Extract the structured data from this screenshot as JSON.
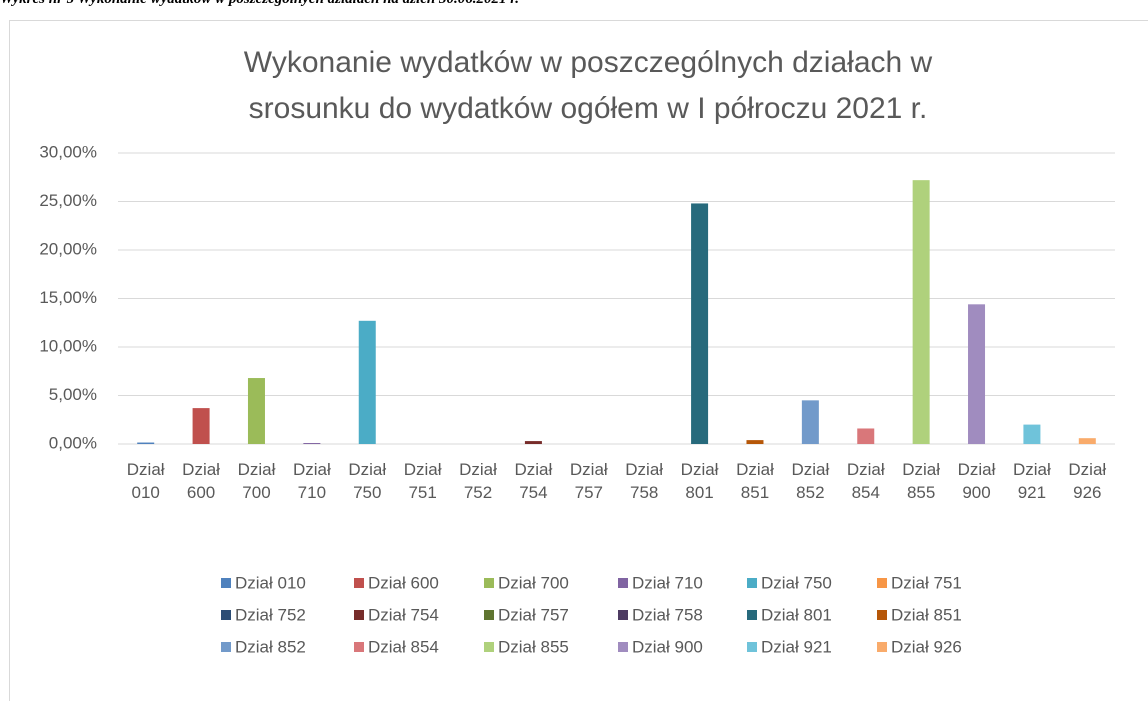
{
  "heading": "Wykres nr 5 Wykonanie wydatków w poszczególnych działach na dzień 30.06.2021 r.",
  "chart_data": {
    "type": "bar",
    "title": "Wykonanie wydatków w poszczególnych działach w srosunku do wydatków ogółem w I półroczu 2021 r.",
    "categories": [
      "Dział 010",
      "Dział 600",
      "Dział 700",
      "Dział 710",
      "Dział 750",
      "Dział 751",
      "Dział 752",
      "Dział 754",
      "Dział 757",
      "Dział 758",
      "Dział 801",
      "Dział 851",
      "Dział 852",
      "Dział 854",
      "Dział 855",
      "Dział 900",
      "Dział 921",
      "Dział 926"
    ],
    "values": [
      0.15,
      3.7,
      6.8,
      0.1,
      12.7,
      0,
      0,
      0.3,
      0,
      0,
      24.8,
      0.4,
      4.5,
      1.6,
      27.2,
      14.4,
      2.0,
      0.6
    ],
    "colors": [
      "#4f81bd",
      "#c0504d",
      "#9bbb59",
      "#8064a2",
      "#4bacc6",
      "#f79646",
      "#2c4d75",
      "#772c2a",
      "#5f7530",
      "#4d3b62",
      "#276a7c",
      "#b65708",
      "#729aca",
      "#d9777a",
      "#afd17c",
      "#a08cbf",
      "#6fc3da",
      "#f9ab6b"
    ],
    "ylim": [
      0,
      30
    ],
    "yticks": [
      {
        "value": 0,
        "label": "0,00%"
      },
      {
        "value": 5,
        "label": "5,00%"
      },
      {
        "value": 10,
        "label": "10,00%"
      },
      {
        "value": 15,
        "label": "15,00%"
      },
      {
        "value": 20,
        "label": "20,00%"
      },
      {
        "value": 25,
        "label": "25,00%"
      },
      {
        "value": 30,
        "label": "30,00%"
      }
    ],
    "grid": true,
    "legend": "bottom"
  }
}
